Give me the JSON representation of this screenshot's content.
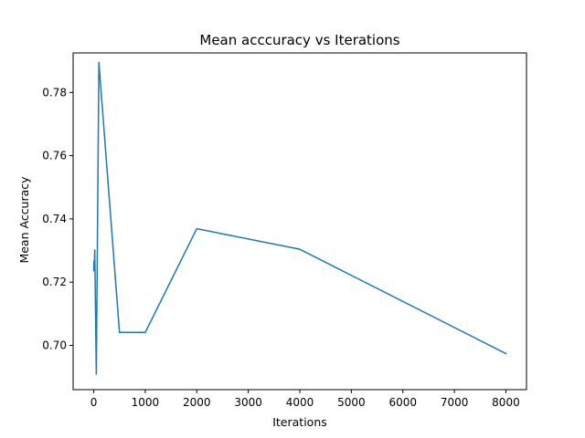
{
  "chart_data": {
    "type": "line",
    "title": "Mean acccuracy vs Iterations",
    "xlabel": "Iterations",
    "ylabel": "Mean Accuracy",
    "xlim": [
      -400,
      8400
    ],
    "ylim": [
      0.686,
      0.7925
    ],
    "xticks": [
      0,
      1000,
      2000,
      3000,
      4000,
      5000,
      6000,
      7000,
      8000
    ],
    "xtick_labels": [
      "0",
      "1000",
      "2000",
      "3000",
      "4000",
      "5000",
      "6000",
      "7000",
      "8000"
    ],
    "yticks": [
      0.7,
      0.72,
      0.74,
      0.76,
      0.78
    ],
    "ytick_labels": [
      "0.70",
      "0.72",
      "0.74",
      "0.76",
      "0.78"
    ],
    "grid": false,
    "legend": "none",
    "series": [
      {
        "color": "#1f77b4",
        "x": [
          1,
          5,
          10,
          20,
          50,
          100,
          500,
          1000,
          2000,
          4000,
          8000
        ],
        "y": [
          0.7238,
          0.7266,
          0.7235,
          0.7302,
          0.6909,
          0.7895,
          0.7041,
          0.7041,
          0.7369,
          0.7304,
          0.6974
        ]
      }
    ]
  }
}
